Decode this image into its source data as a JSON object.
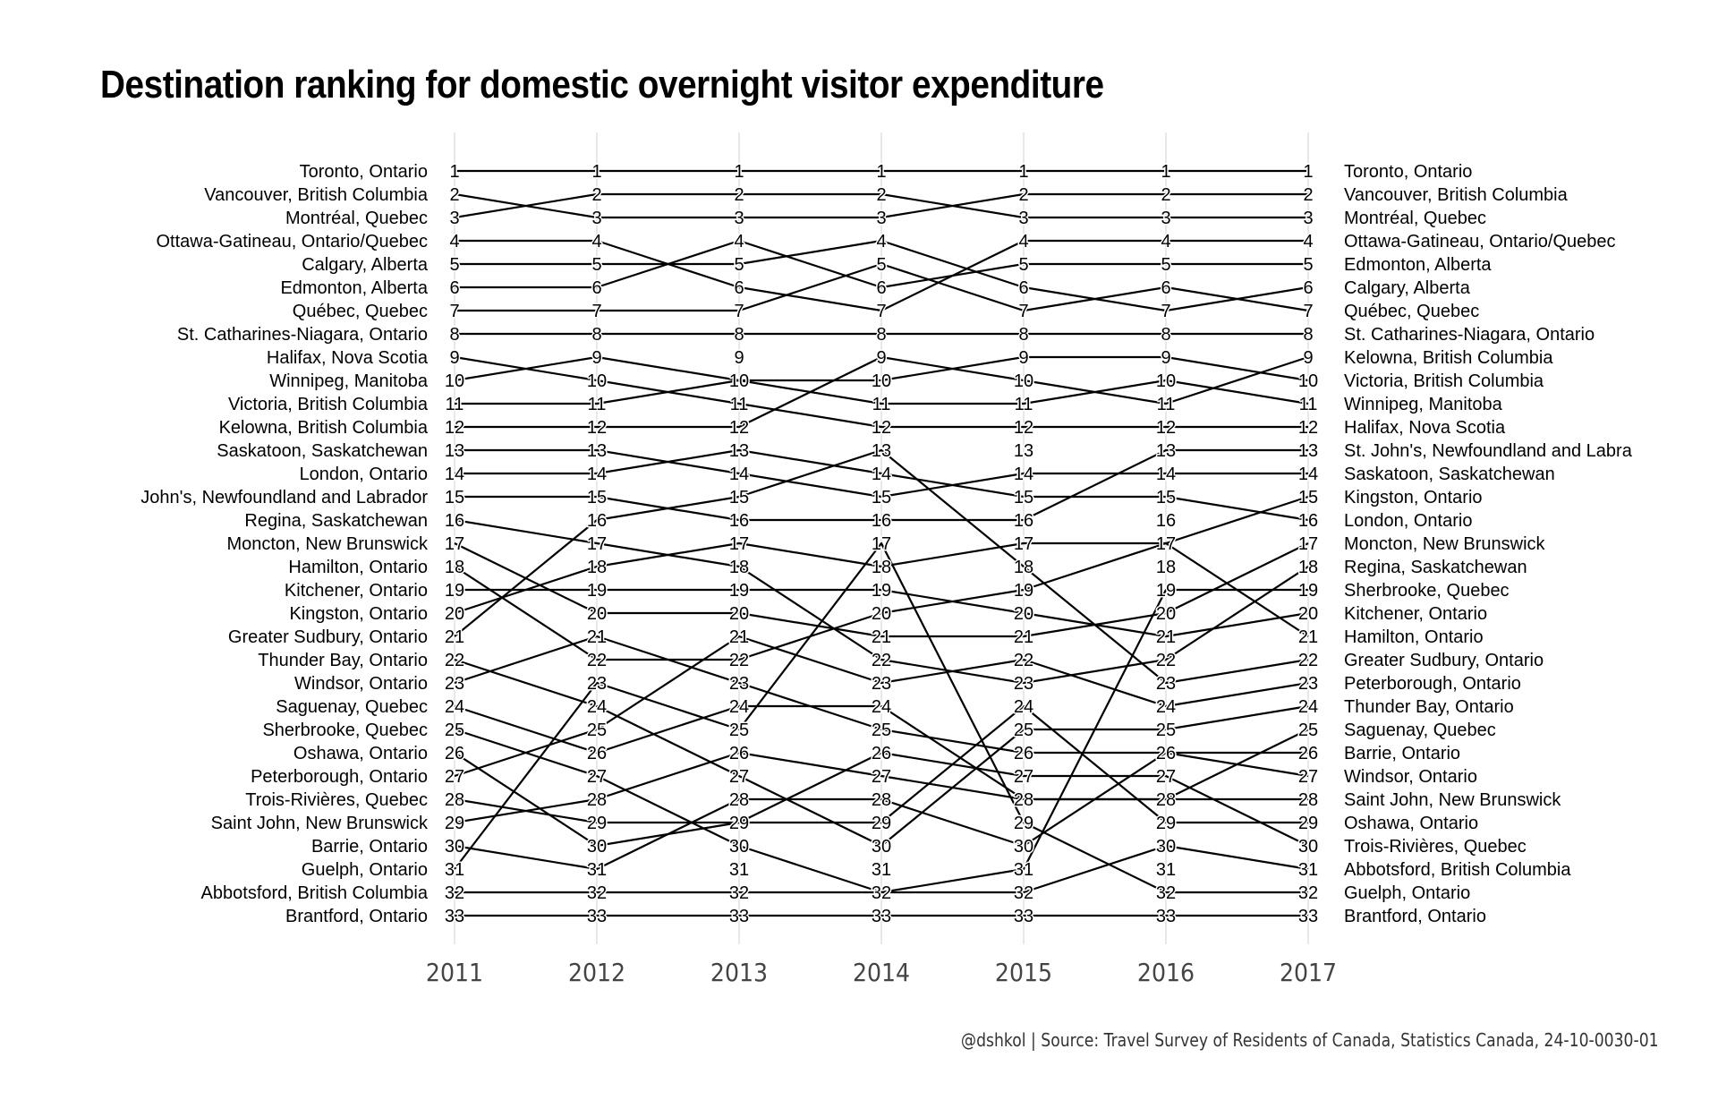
{
  "title": "Destination ranking for domestic overnight visitor expenditure",
  "caption": "@dshkol | Source: Travel Survey of Residents of Canada, Statistics Canada, 24-10-0030-01",
  "colors": {
    "line": "#000000",
    "grid": "#d9d9d9",
    "label": "#000000",
    "axis_text": "#444444"
  },
  "chart_data": {
    "type": "line",
    "subtype": "bump",
    "x": [
      2011,
      2012,
      2013,
      2014,
      2015,
      2016,
      2017
    ],
    "y_reversed": true,
    "ylim": [
      1,
      33
    ],
    "grid": "vertical",
    "left_labels": [
      "Toronto, Ontario",
      "Vancouver, British Columbia",
      "Montréal, Quebec",
      "Ottawa-Gatineau, Ontario/Quebec",
      "Calgary, Alberta",
      "Edmonton, Alberta",
      "Québec, Quebec",
      "St. Catharines-Niagara, Ontario",
      "Halifax, Nova Scotia",
      "Winnipeg, Manitoba",
      "Victoria, British Columbia",
      "Kelowna, British Columbia",
      "Saskatoon, Saskatchewan",
      "London, Ontario",
      "John's, Newfoundland and Labrador",
      "Regina, Saskatchewan",
      "Moncton, New Brunswick",
      "Hamilton, Ontario",
      "Kitchener, Ontario",
      "Kingston, Ontario",
      "Greater Sudbury, Ontario",
      "Thunder Bay, Ontario",
      "Windsor, Ontario",
      "Saguenay, Quebec",
      "Sherbrooke, Quebec",
      "Oshawa, Ontario",
      "Peterborough, Ontario",
      "Trois-Rivières, Quebec",
      "Saint John, New Brunswick",
      "Barrie, Ontario",
      "Guelph, Ontario",
      "Abbotsford, British Columbia",
      "Brantford, Ontario"
    ],
    "right_labels": [
      "Toronto, Ontario",
      "Vancouver, British Columbia",
      "Montréal, Quebec",
      "Ottawa-Gatineau, Ontario/Quebec",
      "Edmonton, Alberta",
      "Calgary, Alberta",
      "Québec, Quebec",
      "St. Catharines-Niagara, Ontario",
      "Kelowna, British Columbia",
      "Victoria, British Columbia",
      "Winnipeg, Manitoba",
      "Halifax, Nova Scotia",
      "St. John's, Newfoundland and Labra",
      "Saskatoon, Saskatchewan",
      "Kingston, Ontario",
      "London, Ontario",
      "Moncton, New Brunswick",
      "Regina, Saskatchewan",
      "Sherbrooke, Quebec",
      "Kitchener, Ontario",
      "Hamilton, Ontario",
      "Greater Sudbury, Ontario",
      "Peterborough, Ontario",
      "Thunder Bay, Ontario",
      "Saguenay, Quebec",
      "Barrie, Ontario",
      "Windsor, Ontario",
      "Saint John, New Brunswick",
      "Oshawa, Ontario",
      "Trois-Rivières, Quebec",
      "Abbotsford, British Columbia",
      "Guelph, Ontario",
      "Brantford, Ontario"
    ],
    "series": [
      {
        "name": "Toronto, Ontario",
        "values": [
          1,
          1,
          1,
          1,
          1,
          1,
          1
        ]
      },
      {
        "name": "Vancouver, British Columbia",
        "values": [
          2,
          3,
          3,
          3,
          2,
          2,
          2
        ]
      },
      {
        "name": "Montréal, Quebec",
        "values": [
          3,
          2,
          2,
          2,
          3,
          3,
          3
        ]
      },
      {
        "name": "Ottawa-Gatineau, Ontario/Quebec",
        "values": [
          4,
          4,
          6,
          7,
          4,
          4,
          4
        ]
      },
      {
        "name": "Calgary, Alberta",
        "values": [
          5,
          5,
          5,
          4,
          6,
          7,
          6
        ]
      },
      {
        "name": "Edmonton, Alberta",
        "values": [
          6,
          6,
          4,
          6,
          5,
          5,
          5
        ]
      },
      {
        "name": "Québec, Quebec",
        "values": [
          7,
          7,
          7,
          5,
          7,
          6,
          7
        ]
      },
      {
        "name": "St. Catharines-Niagara, Ontario",
        "values": [
          8,
          8,
          8,
          8,
          8,
          8,
          8
        ]
      },
      {
        "name": "Halifax, Nova Scotia",
        "values": [
          9,
          10,
          11,
          12,
          12,
          12,
          12
        ]
      },
      {
        "name": "Winnipeg, Manitoba",
        "values": [
          10,
          9,
          10,
          11,
          11,
          10,
          11
        ]
      },
      {
        "name": "Victoria, British Columbia",
        "values": [
          11,
          11,
          10,
          10,
          9,
          9,
          10
        ]
      },
      {
        "name": "Kelowna, British Columbia",
        "values": [
          12,
          12,
          12,
          9,
          10,
          11,
          9
        ]
      },
      {
        "name": "Saskatoon, Saskatchewan",
        "values": [
          13,
          13,
          14,
          15,
          14,
          14,
          14
        ]
      },
      {
        "name": "London, Ontario",
        "values": [
          14,
          14,
          13,
          14,
          15,
          15,
          16
        ]
      },
      {
        "name": "St. John's, Newfoundland and Labrador",
        "values": [
          15,
          15,
          16,
          16,
          16,
          13,
          13
        ]
      },
      {
        "name": "Regina, Saskatchewan",
        "values": [
          16,
          17,
          18,
          22,
          23,
          22,
          18
        ]
      },
      {
        "name": "Moncton, New Brunswick",
        "values": [
          17,
          20,
          20,
          21,
          21,
          20,
          17
        ]
      },
      {
        "name": "Hamilton, Ontario",
        "values": [
          18,
          22,
          22,
          20,
          19,
          17,
          21
        ]
      },
      {
        "name": "Kitchener, Ontario",
        "values": [
          19,
          19,
          19,
          19,
          20,
          21,
          20
        ]
      },
      {
        "name": "Kingston, Ontario",
        "values": [
          20,
          18,
          17,
          18,
          17,
          17,
          15
        ]
      },
      {
        "name": "Greater Sudbury, Ontario",
        "values": [
          21,
          16,
          15,
          13,
          18,
          23,
          22
        ]
      },
      {
        "name": "Thunder Bay, Ontario",
        "values": [
          22,
          24,
          27,
          30,
          25,
          25,
          24
        ]
      },
      {
        "name": "Windsor, Ontario",
        "values": [
          23,
          21,
          23,
          25,
          26,
          26,
          27
        ]
      },
      {
        "name": "Saguenay, Quebec",
        "values": [
          24,
          26,
          24,
          24,
          28,
          28,
          25
        ]
      },
      {
        "name": "Sherbrooke, Quebec",
        "values": [
          25,
          27,
          30,
          32,
          31,
          19,
          19
        ]
      },
      {
        "name": "Oshawa, Ontario",
        "values": [
          26,
          30,
          29,
          29,
          24,
          29,
          29
        ]
      },
      {
        "name": "Peterborough, Ontario",
        "values": [
          27,
          25,
          21,
          23,
          22,
          24,
          23
        ]
      },
      {
        "name": "Trois-Rivières, Quebec",
        "values": [
          28,
          29,
          29,
          26,
          27,
          27,
          30
        ]
      },
      {
        "name": "Saint John, New Brunswick",
        "values": [
          29,
          28,
          26,
          27,
          28,
          28,
          28
        ]
      },
      {
        "name": "Barrie, Ontario",
        "values": [
          30,
          31,
          28,
          28,
          30,
          26,
          26
        ]
      },
      {
        "name": "Guelph, Ontario",
        "values": [
          31,
          23,
          25,
          17,
          29,
          32,
          32
        ]
      },
      {
        "name": "Abbotsford, British Columbia",
        "values": [
          32,
          32,
          32,
          32,
          32,
          30,
          31
        ]
      },
      {
        "name": "Brantford, Ontario",
        "values": [
          33,
          33,
          33,
          33,
          33,
          33,
          33
        ]
      }
    ]
  }
}
